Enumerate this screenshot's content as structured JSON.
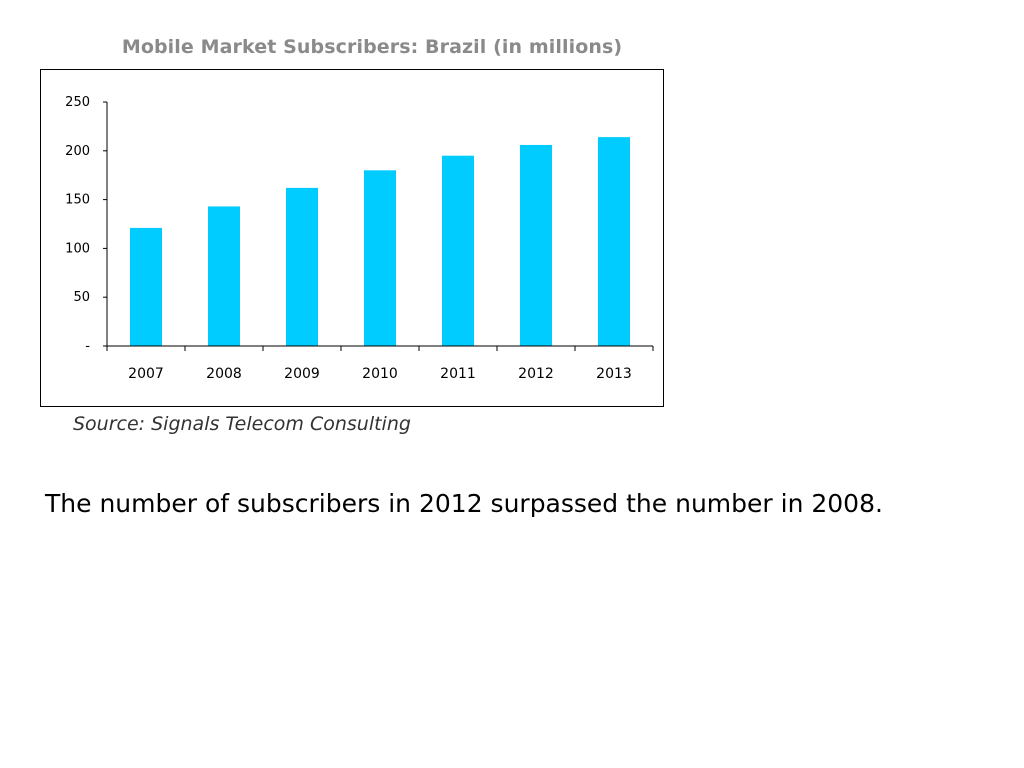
{
  "chart_data": {
    "type": "bar",
    "title": "Mobile Market Subscribers: Brazil (in millions)",
    "categories": [
      "2007",
      "2008",
      "2009",
      "2010",
      "2011",
      "2012",
      "2013"
    ],
    "values": [
      121,
      143,
      162,
      180,
      195,
      206,
      214
    ],
    "ylim": [
      0,
      250
    ],
    "yticks": [
      0,
      50,
      100,
      150,
      200,
      250
    ],
    "ytick_labels": [
      "-",
      "50",
      "100",
      "150",
      "200",
      "250"
    ],
    "xlabel": "",
    "ylabel": "",
    "grid": false,
    "legend": "none",
    "bar_color": "#00ccff"
  },
  "source": "Source: Signals Telecom Consulting",
  "caption": "The number of subscribers in 2012 surpassed the number in 2008."
}
